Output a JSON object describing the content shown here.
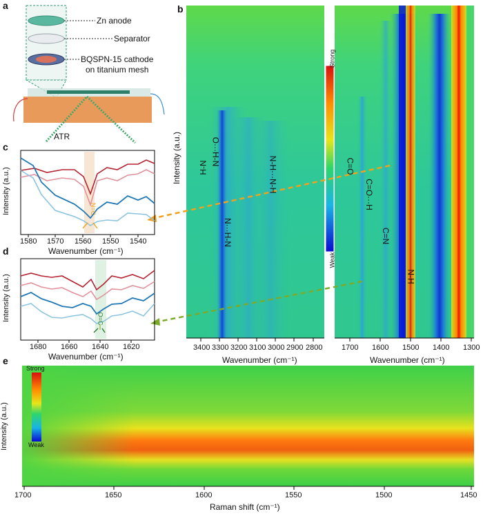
{
  "panels": {
    "a": {
      "letter": "a",
      "labels": [
        "Zn anode",
        "Separator",
        "BQSPN-15 cathode",
        "on titanium mesh"
      ],
      "atr": "ATR"
    },
    "b": {
      "letter": "b",
      "ylabel": "Intensity (a.u.)",
      "left_xlabel": "Wavenumber (cm⁻¹)",
      "right_xlabel": "Wavenumber (cm⁻¹)",
      "left_ticks": [
        "3400",
        "3300",
        "3200",
        "3100",
        "3000",
        "2900",
        "2800"
      ],
      "right_ticks": [
        "1700",
        "1600",
        "1500",
        "1400",
        "1300"
      ],
      "colorbar": {
        "top": "Strong",
        "bottom": "Weak"
      },
      "annotations_left": [
        "H-N",
        "O···H-N",
        "N···H-N",
        "N-H···N-H"
      ],
      "annotations_right": [
        "C=O",
        "C=O···H",
        "C=N",
        "N-H"
      ]
    },
    "c": {
      "letter": "c",
      "ylabel": "Intensity (a.u.)",
      "xlabel": "Wavenumber (cm⁻¹)",
      "ticks": [
        "1580",
        "1570",
        "1560",
        "1550",
        "1540"
      ],
      "inset": "N=C"
    },
    "d": {
      "letter": "d",
      "ylabel": "Intensity (a.u.)",
      "xlabel": "Wavenumber (cm⁻¹)",
      "ticks": [
        "1680",
        "1660",
        "1640",
        "1620"
      ],
      "inset": "O=C"
    },
    "e": {
      "letter": "e",
      "ylabel": "Intensity (a.u.)",
      "xlabel": "Raman shift (cm⁻¹)",
      "ticks": [
        "1700",
        "1650",
        "1600",
        "1550",
        "1500",
        "1450"
      ],
      "colorbar": {
        "top": "Strong",
        "bottom": "Weak"
      }
    }
  },
  "colors": {
    "series": [
      "#b5202e",
      "#e0919b",
      "#1f78b4",
      "#8cc4e0"
    ],
    "orange_arrow": "#f0a21e",
    "green_arrow": "#7cab2c"
  }
}
